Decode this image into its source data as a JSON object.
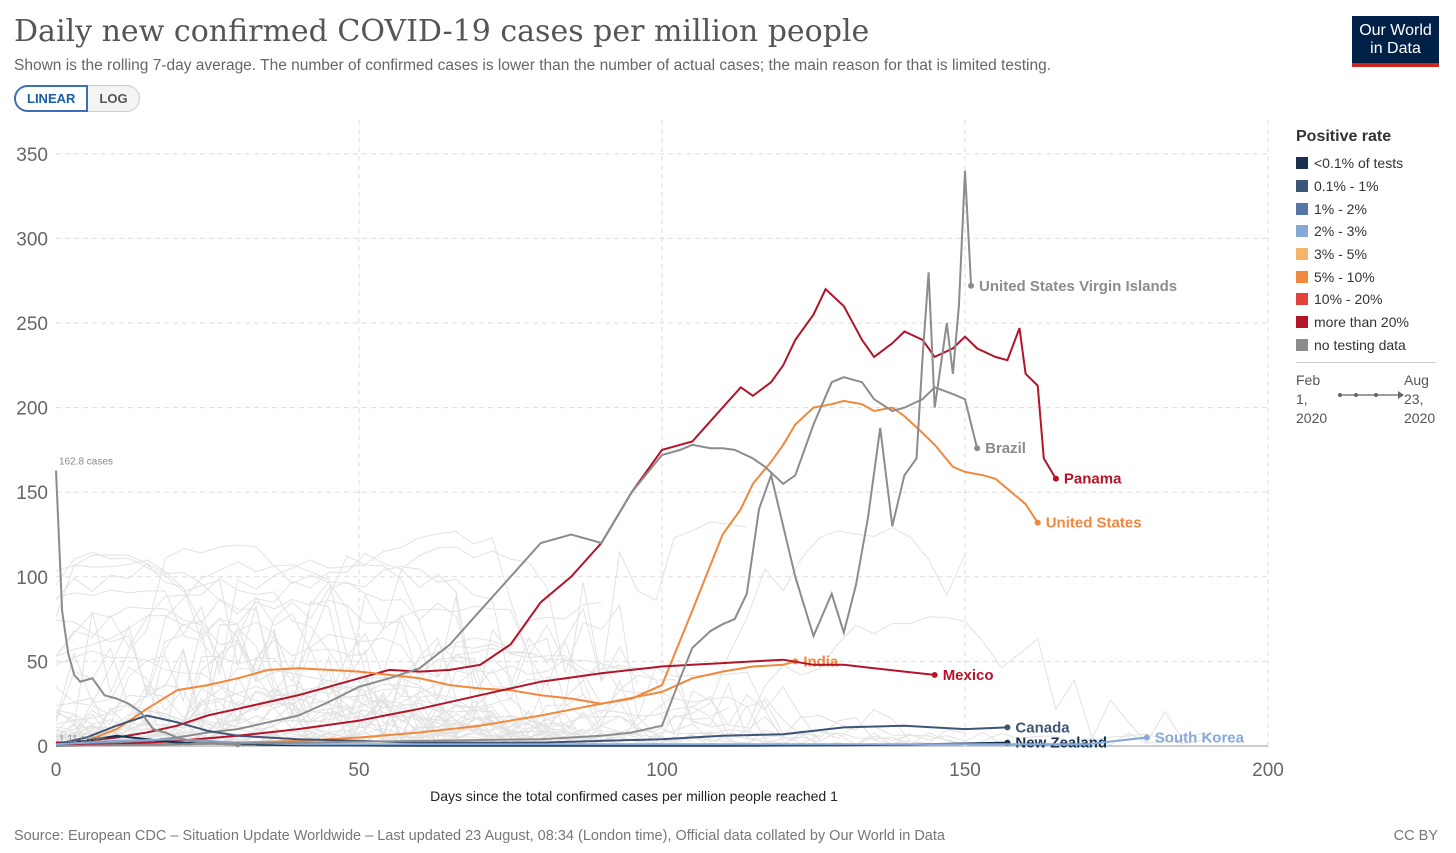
{
  "header": {
    "title": "Daily new confirmed COVID-19 cases per million people",
    "subtitle": "Shown is the rolling 7-day average. The number of confirmed cases is lower than the number of actual cases; the main reason for that is limited testing.",
    "logo_line1": "Our World",
    "logo_line2": "in Data",
    "logo_bar_color": "#ce261e",
    "logo_bg_color": "#002147"
  },
  "controls": {
    "linear_label": "LINEAR",
    "log_label": "LOG",
    "selected": "LINEAR"
  },
  "legend": {
    "title": "Positive rate",
    "items": [
      {
        "label": "<0.1% of tests",
        "color": "#16324f"
      },
      {
        "label": "0.1% - 1%",
        "color": "#3f5577"
      },
      {
        "label": "1% - 2%",
        "color": "#5776a8"
      },
      {
        "label": "2% - 3%",
        "color": "#87a9d8"
      },
      {
        "label": "3% - 5%",
        "color": "#f6b46b"
      },
      {
        "label": "5% - 10%",
        "color": "#f0883d"
      },
      {
        "label": "10% - 20%",
        "color": "#e3423c"
      },
      {
        "label": "more than 20%",
        "color": "#b3142a"
      },
      {
        "label": "no testing data",
        "color": "#8c8c8c"
      }
    ],
    "timeline_start": [
      "Feb",
      "1,",
      "2020"
    ],
    "timeline_end": [
      "Aug",
      "23,",
      "2020"
    ]
  },
  "footer": {
    "source": "Source: European CDC – Situation Update Worldwide – Last updated 23 August, 08:34 (London time), Official data collated by Our World in Data",
    "license": "CC BY"
  },
  "chart_data": {
    "type": "line",
    "xlabel": "Days since the total confirmed cases per million people reached 1",
    "ylabel": "",
    "xlim": [
      0,
      200
    ],
    "ylim": [
      0,
      370
    ],
    "xticks": [
      0,
      50,
      100,
      150,
      200
    ],
    "yticks": [
      0,
      50,
      100,
      150,
      200,
      250,
      300,
      350
    ],
    "grid": true,
    "annotations": [
      {
        "text": "162.8 cases",
        "x": 0,
        "y": 162.8
      },
      {
        "text": "1.11 cases",
        "x": 0,
        "y": 1.11
      }
    ],
    "series": [
      {
        "name": "Panama",
        "color": "#b3142a",
        "x": [
          0,
          5,
          10,
          15,
          20,
          25,
          30,
          35,
          40,
          45,
          50,
          55,
          60,
          65,
          70,
          75,
          80,
          85,
          90,
          95,
          100,
          103,
          105,
          107,
          110,
          113,
          115,
          118,
          120,
          122,
          125,
          127,
          130,
          133,
          135,
          138,
          140,
          143,
          145,
          148,
          150,
          152,
          155,
          157,
          159,
          160,
          162,
          163,
          165
        ],
        "y": [
          2,
          3,
          5,
          8,
          12,
          18,
          22,
          26,
          30,
          35,
          40,
          45,
          44,
          45,
          48,
          60,
          85,
          100,
          120,
          150,
          175,
          178,
          180,
          188,
          200,
          212,
          207,
          215,
          225,
          240,
          255,
          270,
          260,
          240,
          230,
          238,
          245,
          240,
          230,
          235,
          242,
          235,
          230,
          228,
          247,
          220,
          213,
          170,
          158
        ]
      },
      {
        "name": "United States",
        "color": "#f0883d",
        "x": [
          0,
          5,
          10,
          15,
          20,
          25,
          30,
          35,
          40,
          45,
          50,
          55,
          60,
          65,
          70,
          75,
          80,
          85,
          90,
          95,
          100,
          105,
          110,
          113,
          115,
          118,
          120,
          122,
          125,
          128,
          130,
          133,
          135,
          138,
          140,
          143,
          145,
          148,
          150,
          153,
          155,
          157,
          160,
          162
        ],
        "y": [
          1,
          3,
          10,
          22,
          33,
          36,
          40,
          45,
          46,
          45,
          44,
          42,
          40,
          36,
          34,
          33,
          30,
          28,
          25,
          28,
          36,
          80,
          125,
          140,
          155,
          168,
          178,
          190,
          200,
          202,
          204,
          202,
          198,
          200,
          195,
          185,
          178,
          165,
          162,
          160,
          158,
          152,
          143,
          132
        ]
      },
      {
        "name": "Brazil",
        "color": "#8c8c8c",
        "x": [
          0,
          5,
          10,
          15,
          20,
          25,
          30,
          35,
          40,
          45,
          50,
          55,
          60,
          65,
          70,
          75,
          80,
          85,
          90,
          95,
          100,
          103,
          105,
          108,
          110,
          112,
          115,
          117,
          120,
          122,
          125,
          128,
          130,
          133,
          135,
          138,
          140,
          143,
          145,
          148,
          150,
          152
        ],
        "y": [
          1,
          1,
          2,
          3,
          5,
          8,
          10,
          14,
          18,
          26,
          35,
          40,
          46,
          60,
          80,
          100,
          120,
          125,
          120,
          150,
          172,
          175,
          178,
          176,
          176,
          175,
          170,
          165,
          155,
          160,
          190,
          215,
          218,
          215,
          205,
          198,
          200,
          205,
          212,
          208,
          205,
          176
        ]
      },
      {
        "name": "India",
        "color": "#f0883d",
        "x": [
          0,
          10,
          20,
          30,
          40,
          50,
          60,
          70,
          80,
          90,
          100,
          105,
          110,
          115,
          120,
          122
        ],
        "y": [
          0.5,
          1,
          1.5,
          2,
          3,
          5,
          8,
          12,
          18,
          25,
          32,
          40,
          44,
          47,
          48,
          50
        ]
      },
      {
        "name": "Mexico",
        "color": "#b3142a",
        "x": [
          0,
          10,
          20,
          30,
          40,
          50,
          60,
          70,
          80,
          90,
          100,
          105,
          110,
          115,
          120,
          125,
          130,
          135,
          140,
          145
        ],
        "y": [
          0.5,
          1,
          3,
          6,
          10,
          15,
          22,
          30,
          38,
          43,
          47,
          48,
          49,
          50,
          51,
          48,
          48,
          46,
          44,
          42
        ]
      },
      {
        "name": "Canada",
        "color": "#3f5577",
        "x": [
          0,
          5,
          10,
          15,
          20,
          25,
          30,
          40,
          50,
          60,
          70,
          80,
          90,
          100,
          110,
          120,
          130,
          140,
          150,
          157
        ],
        "y": [
          1,
          5,
          12,
          18,
          14,
          9,
          6,
          4,
          3,
          2,
          2,
          2,
          3,
          4,
          6,
          7,
          11,
          12,
          10,
          11
        ]
      },
      {
        "name": "New Zealand",
        "color": "#16324f",
        "x": [
          0,
          5,
          10,
          15,
          20,
          30,
          40,
          50,
          60,
          70,
          80,
          90,
          100,
          110,
          120,
          130,
          140,
          150,
          157
        ],
        "y": [
          1,
          3,
          6,
          4,
          2,
          1,
          0.5,
          0.3,
          0.2,
          0.2,
          0.2,
          0.2,
          0.2,
          0.2,
          0.3,
          0.5,
          0.8,
          1.5,
          2
        ]
      },
      {
        "name": "South Korea",
        "color": "#87a9d8",
        "x": [
          0,
          10,
          20,
          30,
          40,
          50,
          60,
          80,
          100,
          120,
          140,
          160,
          170,
          175,
          180
        ],
        "y": [
          1,
          3,
          4,
          2,
          1,
          1,
          1,
          1,
          1,
          1,
          1,
          1,
          1,
          3,
          5
        ]
      },
      {
        "name": "United States Virgin Islands",
        "color": "#8c8c8c",
        "x": [
          0,
          20,
          40,
          60,
          80,
          90,
          95,
          100,
          103,
          105,
          108,
          110,
          112,
          114,
          116,
          118,
          120,
          122,
          125,
          128,
          130,
          132,
          134,
          136,
          138,
          140,
          142,
          143,
          144,
          145,
          146,
          147,
          148,
          149,
          150,
          151
        ],
        "y": [
          0,
          1,
          2,
          3,
          4,
          6,
          8,
          12,
          40,
          58,
          68,
          72,
          75,
          90,
          140,
          160,
          130,
          100,
          65,
          90,
          67,
          95,
          135,
          188,
          130,
          160,
          170,
          230,
          280,
          200,
          225,
          250,
          220,
          260,
          340,
          272
        ]
      },
      {
        "name": "",
        "color": "#8c8c8c",
        "x": [
          0,
          1,
          2,
          3,
          4,
          6,
          8,
          10,
          12,
          14,
          16,
          18,
          20,
          22,
          24,
          26,
          28,
          30
        ],
        "y": [
          162.8,
          80,
          55,
          42,
          38,
          40,
          30,
          28,
          25,
          20,
          10,
          8,
          5,
          3,
          2,
          2,
          1,
          1
        ]
      }
    ]
  }
}
